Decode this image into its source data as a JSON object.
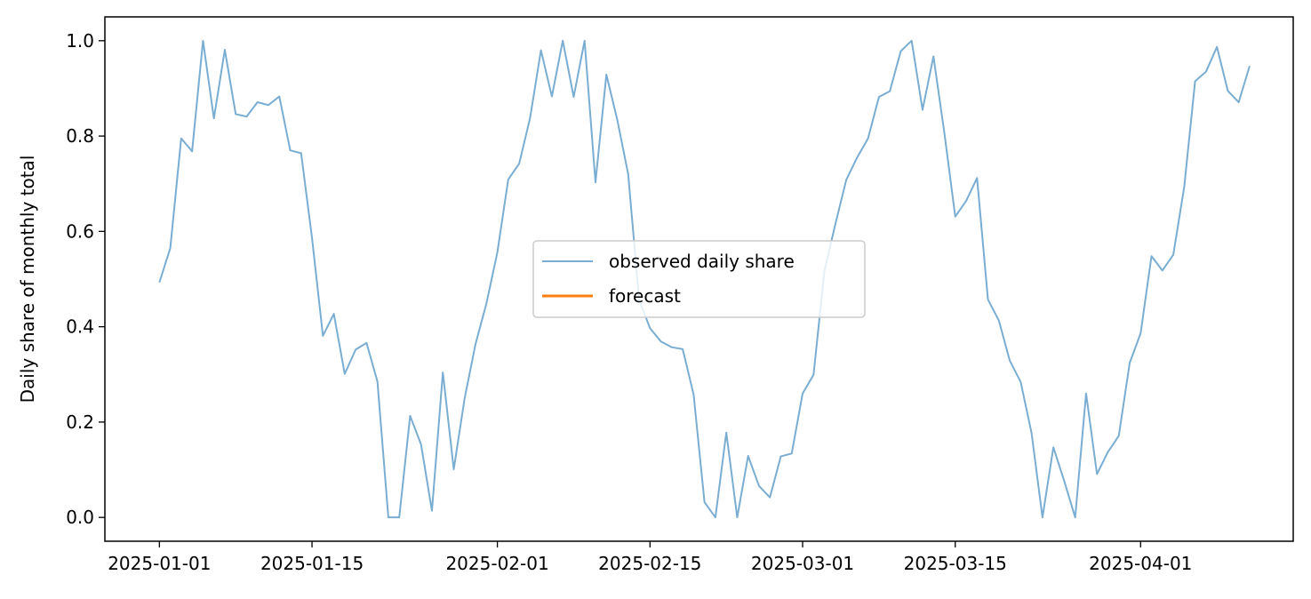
{
  "chart_data": {
    "type": "line",
    "title": "",
    "xlabel": "",
    "ylabel": "Daily share of monthly total",
    "x_start": "2025-01-01",
    "x_ticks": [
      "2025-01-01",
      "2025-01-15",
      "2025-02-01",
      "2025-02-15",
      "2025-03-01",
      "2025-03-15",
      "2025-04-01"
    ],
    "xlim": [
      "2024-12-27",
      "2025-04-15"
    ],
    "ylim": [
      -0.05,
      1.05
    ],
    "y_ticks": [
      0.0,
      0.2,
      0.4,
      0.6,
      0.8,
      1.0
    ],
    "y_tick_labels": [
      "0.0",
      "0.2",
      "0.4",
      "0.6",
      "0.8",
      "1.0"
    ],
    "grid": false,
    "legend": {
      "placement": "center",
      "entries": [
        "observed daily share",
        "forecast"
      ]
    },
    "series": [
      {
        "name": "observed daily share",
        "color": "#1f77b4",
        "values": [
          0.493,
          0.565,
          0.795,
          0.768,
          1.0,
          0.837,
          0.981,
          0.846,
          0.841,
          0.871,
          0.865,
          0.883,
          0.77,
          0.764,
          0.586,
          0.381,
          0.427,
          0.301,
          0.352,
          0.366,
          0.285,
          0.0,
          0.0,
          0.213,
          0.153,
          0.014,
          0.304,
          0.101,
          0.25,
          0.364,
          0.449,
          0.556,
          0.709,
          0.742,
          0.838,
          0.98,
          0.883,
          1.0,
          0.882,
          1.0,
          0.703,
          0.929,
          0.834,
          0.72,
          0.457,
          0.397,
          0.369,
          0.357,
          0.353,
          0.258,
          0.032,
          0.0,
          0.178,
          0.0,
          0.129,
          0.066,
          0.042,
          0.128,
          0.134,
          0.26,
          0.299,
          0.517,
          0.615,
          0.708,
          0.755,
          0.795,
          0.882,
          0.894,
          0.978,
          1.0,
          0.855,
          0.967,
          0.807,
          0.631,
          0.664,
          0.712,
          0.457,
          0.413,
          0.329,
          0.284,
          0.177,
          0.0,
          0.147,
          0.076,
          0.0,
          0.26,
          0.091,
          0.137,
          0.171,
          0.324,
          0.386,
          0.548,
          0.518,
          0.551,
          0.693,
          0.915,
          0.935,
          0.987,
          0.895,
          0.871,
          0.947
        ]
      },
      {
        "name": "forecast",
        "color": "#ff7f0e",
        "values": []
      }
    ]
  }
}
